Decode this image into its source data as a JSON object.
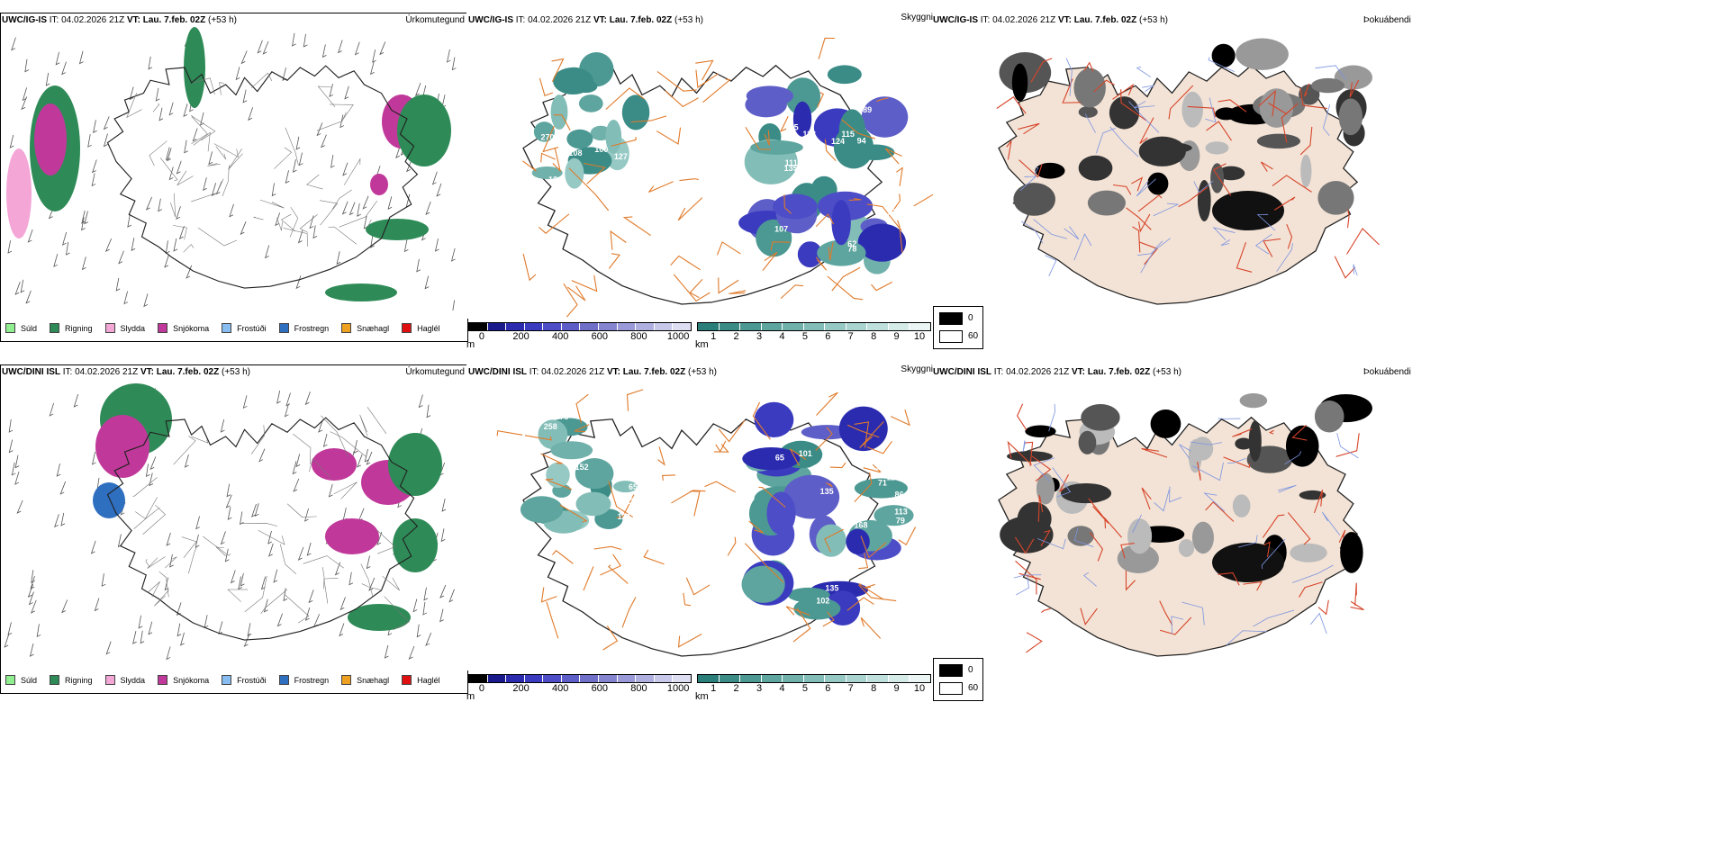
{
  "rows": [
    {
      "model": "UWC/IG-IS",
      "it_label": "IT: 04.02.2026 21Z",
      "vt_label": "VT: Lau. 7.feb. 02Z",
      "lead": "(+53 h)",
      "precip_title": "Úrkomutegund",
      "cloud_title": "Skyggni",
      "fog_title": "Þokuábendi",
      "cloud_numbers": [
        "107",
        "62",
        "111",
        "124",
        "78",
        "75",
        "126",
        "97",
        "89",
        "94",
        "118",
        "94",
        "135",
        "115",
        "133",
        "87",
        "121",
        "141",
        "124",
        "127",
        "270",
        "100",
        "108",
        "131"
      ]
    },
    {
      "model": "UWC/DINI ISL",
      "it_label": "IT: 04.02.2026 21Z",
      "vt_label": "VT: Lau. 7.feb. 02Z",
      "lead": "(+53 h)",
      "precip_title": "Úrkomutegund",
      "cloud_title": "Skyggni",
      "fog_title": "Þokuábendi",
      "cloud_numbers": [
        "91",
        "65",
        "66",
        "71",
        "113",
        "39",
        "86",
        "198",
        "135",
        "168",
        "113",
        "102",
        "101",
        "144",
        "135",
        "79",
        "43",
        "65",
        "178",
        "121",
        "258",
        "133",
        "100",
        "175",
        "118",
        "152"
      ]
    }
  ],
  "precip_legend": [
    {
      "label": "Súld",
      "color": "#90ee90"
    },
    {
      "label": "Rigning",
      "color": "#2e8b57"
    },
    {
      "label": "Slydda",
      "color": "#f4a6d7"
    },
    {
      "label": "Snjókoma",
      "color": "#c0399a"
    },
    {
      "label": "Frostúði",
      "color": "#87bdf0"
    },
    {
      "label": "Frostregn",
      "color": "#2f6fc0"
    },
    {
      "label": "Snæhagl",
      "color": "#f0a020"
    },
    {
      "label": "Haglél",
      "color": "#e01010"
    }
  ],
  "ceiling_bar": {
    "unit": "m",
    "ticks": [
      "0",
      "200",
      "400",
      "600",
      "800",
      "1000"
    ],
    "colors": [
      "#000000",
      "#1a1a8c",
      "#2b2bb0",
      "#3b3bc0",
      "#4d4dc8",
      "#5e5ec8",
      "#7070c8",
      "#8585cf",
      "#9a9ad8",
      "#b0b0e0",
      "#c8c8ea",
      "#dedef2"
    ]
  },
  "visibility_bar": {
    "unit": "km",
    "ticks": [
      "1",
      "2",
      "3",
      "4",
      "5",
      "6",
      "7",
      "8",
      "9",
      "10"
    ],
    "colors": [
      "#2a7f7a",
      "#3b8c86",
      "#4c9893",
      "#5ea59f",
      "#70b1ab",
      "#82bdb7",
      "#96c9c4",
      "#aad4cf",
      "#bfe0dc",
      "#d4ebe8",
      "#ebf5f4"
    ]
  },
  "fog_legend": [
    {
      "label": "0",
      "color": "#000000"
    },
    {
      "label": "60",
      "color": "#ffffff"
    }
  ],
  "colors": {
    "land_fill": "#f3e3d6",
    "roads": "#e07a2a",
    "fog_roads": "#d6452a",
    "rivers": "#7b93e0",
    "coast": "#1a1a1a"
  }
}
